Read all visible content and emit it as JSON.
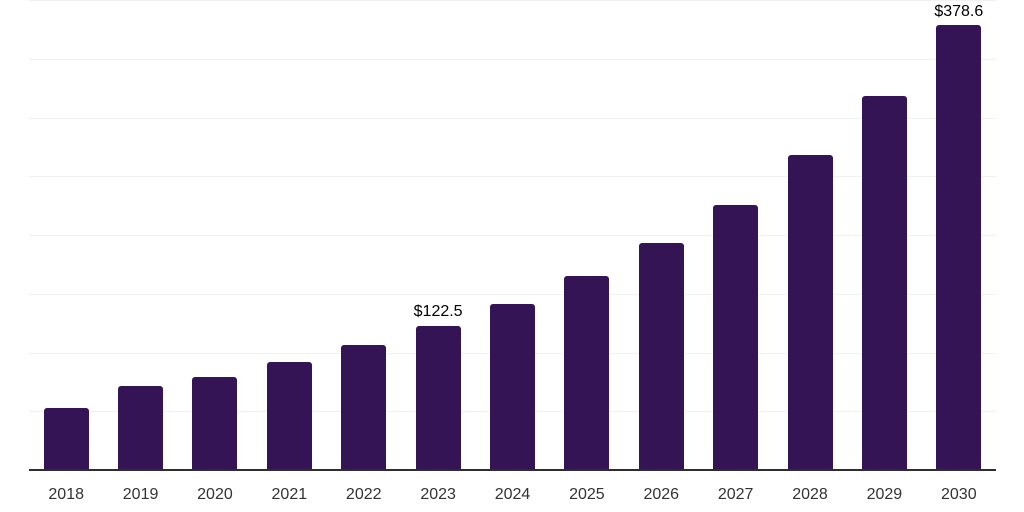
{
  "chart_data": {
    "type": "bar",
    "categories": [
      "2018",
      "2019",
      "2020",
      "2021",
      "2022",
      "2023",
      "2024",
      "2025",
      "2026",
      "2027",
      "2028",
      "2029",
      "2030"
    ],
    "values": [
      53.0,
      71.5,
      79.4,
      92.3,
      106.6,
      122.5,
      141.3,
      165.3,
      193.4,
      225.9,
      267.7,
      317.9,
      378.6
    ],
    "annotations": [
      {
        "category": "2023",
        "label": "$122.5"
      },
      {
        "category": "2030",
        "label": "$378.6"
      }
    ],
    "title": "",
    "xlabel": "",
    "ylabel": "",
    "ylim": [
      0,
      400
    ],
    "grid_interval": 50,
    "gridlines": "horizontal",
    "legend": "none",
    "colors": {
      "bar": "#341454",
      "axis_line": "#2e2e2e",
      "gridline": "#f1f1f1",
      "value_label": "#000000",
      "tick_label": "#333333",
      "background": "#ffffff"
    }
  }
}
